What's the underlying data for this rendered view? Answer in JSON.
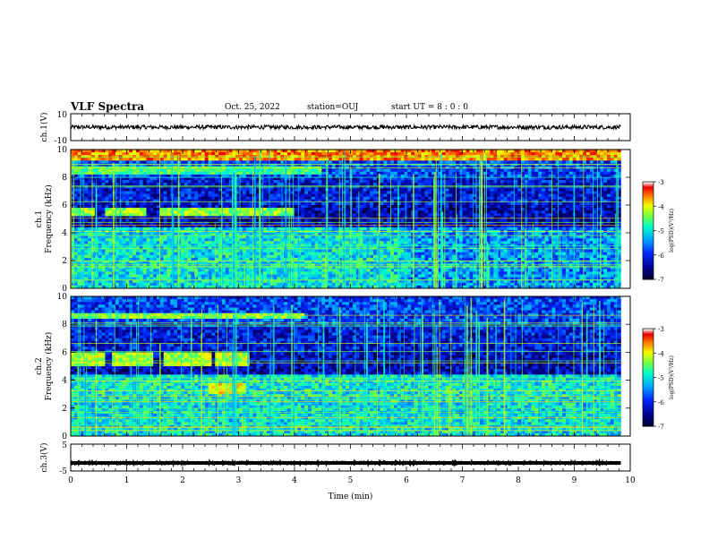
{
  "header": {
    "title": "VLF Spectra",
    "date": "Oct. 25, 2022",
    "station": "station=OUJ",
    "start": "start  UT =   8 : 0  : 0"
  },
  "chart_data": [
    {
      "type": "line",
      "name_hint": "waveform-ch1",
      "ylabel": "ch.1(V)",
      "yticks": [
        "10",
        "-10"
      ],
      "ylim": [
        -10,
        10
      ],
      "xlim": [
        0,
        10
      ],
      "series_mean": 0,
      "series_amplitude": 1.5,
      "color": "#000000"
    },
    {
      "type": "heatmap",
      "ylabel": "ch.1\nFrequency (kHz)",
      "xlim": [
        0,
        10
      ],
      "ylim": [
        0,
        10
      ],
      "yticks": [
        "0",
        "2",
        "4",
        "6",
        "8",
        "10"
      ],
      "data_extent_min": 9.83,
      "colorbar": {
        "label": "log(PSD)(V²/Hz)",
        "ticks": [
          "-3",
          "-4",
          "-5",
          "-6",
          "-7"
        ],
        "range": [
          -7,
          -3
        ]
      },
      "features": [
        {
          "band_khz": [
            4.2,
            4.8
          ],
          "minutes": [
            [
              0,
              0.45
            ],
            [
              0.6,
              1.35
            ],
            [
              1.6,
              4.0
            ]
          ],
          "level": -4.3
        },
        {
          "band_khz": [
            1.3,
            1.8
          ],
          "minutes": [
            [
              0,
              4.5
            ]
          ],
          "level": -4.6
        },
        {
          "band_khz": [
            0.1,
            0.8
          ],
          "minutes": [
            [
              0,
              9.83
            ]
          ],
          "level": -3.6
        }
      ]
    },
    {
      "type": "heatmap",
      "ylabel": "ch.2\nFrequency (kHz)",
      "xlim": [
        0,
        10
      ],
      "ylim": [
        0,
        10
      ],
      "yticks": [
        "0",
        "2",
        "4",
        "6",
        "8",
        "10"
      ],
      "data_extent_min": 9.83,
      "colorbar": {
        "label": "log(PSD)(V²/Hz)",
        "ticks": [
          "-3",
          "-4",
          "-5",
          "-6",
          "-7"
        ],
        "range": [
          -7,
          -3
        ]
      },
      "features": [
        {
          "band_khz": [
            4.0,
            5.0
          ],
          "minutes": [
            [
              0,
              0.6
            ],
            [
              0.75,
              1.5
            ],
            [
              1.65,
              2.5
            ],
            [
              2.6,
              3.2
            ]
          ],
          "level": -4.2
        },
        {
          "band_khz": [
            6.2,
            7.0
          ],
          "minutes": [
            [
              2.45,
              3.15
            ]
          ],
          "level": -4.0
        },
        {
          "band_khz": [
            1.2,
            1.6
          ],
          "minutes": [
            [
              0,
              4.2
            ]
          ],
          "level": -4.4
        }
      ]
    },
    {
      "type": "line",
      "ylabel": "ch.3(V)",
      "yticks": [
        "5",
        "-5"
      ],
      "ylim": [
        -5,
        5
      ],
      "xlim": [
        0,
        10
      ],
      "xlabel": "Time (min)",
      "xticks": [
        "0",
        "1",
        "2",
        "3",
        "4",
        "5",
        "6",
        "7",
        "8",
        "9",
        "10"
      ],
      "series_mean": -2,
      "series_amplitude": 0.4,
      "color": "#000000"
    }
  ]
}
